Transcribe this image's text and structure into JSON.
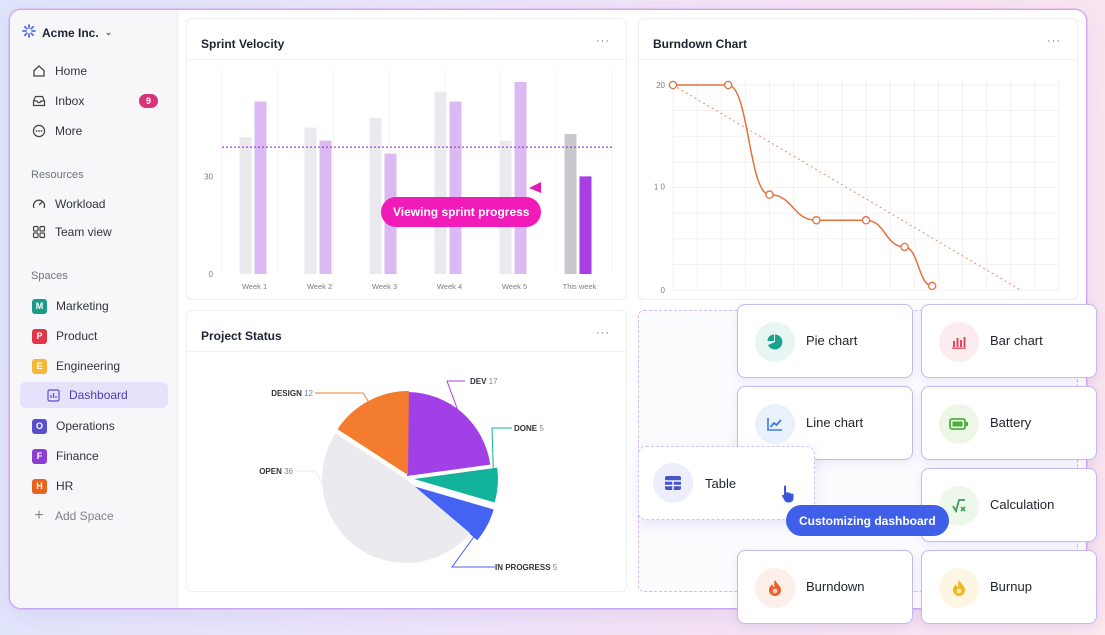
{
  "workspace": {
    "name": "Acme Inc."
  },
  "nav": {
    "home": "Home",
    "inbox": "Inbox",
    "inbox_count": "9",
    "more": "More"
  },
  "resources": {
    "label": "Resources",
    "items": [
      "Workload",
      "Team view"
    ]
  },
  "spaces": {
    "label": "Spaces",
    "items": [
      {
        "letter": "M",
        "name": "Marketing",
        "color": "#1a9c86"
      },
      {
        "letter": "P",
        "name": "Product",
        "color": "#e0364a"
      },
      {
        "letter": "E",
        "name": "Engineering",
        "color": "#f3b73a"
      },
      {
        "letter": "",
        "name": "Dashboard",
        "color": "#5a4fc9"
      },
      {
        "letter": "O",
        "name": "Operations",
        "color": "#5b4fd0"
      },
      {
        "letter": "F",
        "name": "Finance",
        "color": "#8b3fd0"
      },
      {
        "letter": "H",
        "name": "HR",
        "color": "#e8641e"
      }
    ],
    "add_label": "Add Space"
  },
  "panels": {
    "velocity_title": "Sprint Velocity",
    "burndown_title": "Burndown Chart",
    "status_title": "Project Status",
    "more": "···"
  },
  "tooltips": {
    "sprint": "Viewing sprint progress",
    "customize": "Customizing dashboard"
  },
  "widgets": [
    {
      "label": "Pie chart",
      "icon": "pie-chart-icon",
      "bg": "#e8f6f3",
      "fg": "#1aa38c"
    },
    {
      "label": "Bar chart",
      "icon": "bar-chart-icon",
      "bg": "#fdecef",
      "fg": "#e0485c"
    },
    {
      "label": "Line chart",
      "icon": "line-chart-icon",
      "bg": "#eaf1fd",
      "fg": "#3d7be0"
    },
    {
      "label": "Battery",
      "icon": "battery-icon",
      "bg": "#edf7e8",
      "fg": "#4caf3a"
    },
    {
      "label": "Calculation",
      "icon": "calculation-icon",
      "bg": "#edf7ea",
      "fg": "#3a9e5a"
    },
    {
      "label": "Burndown",
      "icon": "flame-icon",
      "bg": "#fdefe9",
      "fg": "#e8602c"
    },
    {
      "label": "Burnup",
      "icon": "burnup-flame-icon",
      "bg": "#fdf6e2",
      "fg": "#f2b818"
    }
  ],
  "table_widget": {
    "label": "Table",
    "icon": "table-icon"
  },
  "chart_data": [
    {
      "type": "bar",
      "title": "Sprint Velocity",
      "categories": [
        "Week 1",
        "Week 2",
        "Week 3",
        "Week 4",
        "Week 5",
        "This week"
      ],
      "yticks": [
        "0",
        "30"
      ],
      "series": [
        {
          "values": [
            42,
            45,
            48,
            56,
            41,
            43
          ],
          "color": "#e9e9ee",
          "highlight": "#c8c8cc"
        },
        {
          "values": [
            53,
            41,
            37,
            53,
            59,
            30
          ],
          "color": "#dbb9f3",
          "highlight": "#a73ee6"
        }
      ],
      "average_line": 39,
      "ylim": [
        0,
        63
      ]
    },
    {
      "type": "line",
      "title": "Burndown Chart",
      "yticks": [
        "20",
        "1 0",
        "0"
      ],
      "actual": [
        [
          0,
          20
        ],
        [
          1,
          20
        ],
        [
          1.75,
          9.3
        ],
        [
          2.6,
          6.8
        ],
        [
          3.5,
          6.8
        ],
        [
          4.2,
          4.2
        ],
        [
          4.7,
          0.4
        ]
      ],
      "ideal": [
        [
          0,
          20
        ],
        [
          6.3,
          0
        ]
      ],
      "xlim": [
        0,
        7
      ],
      "ylim": [
        0,
        20
      ]
    },
    {
      "type": "pie",
      "title": "Project Status",
      "slices": [
        {
          "label": "DEV",
          "value": 17,
          "color": "#a240e8"
        },
        {
          "label": "DONE",
          "value": 5,
          "color": "#12b39a"
        },
        {
          "label": "IN PROGRESS",
          "value": 5,
          "color": "#4463f2"
        },
        {
          "label": "OPEN",
          "value": 36,
          "color": "#ebebef"
        },
        {
          "label": "DESIGN",
          "value": 12,
          "color": "#f37c2e"
        }
      ]
    }
  ]
}
